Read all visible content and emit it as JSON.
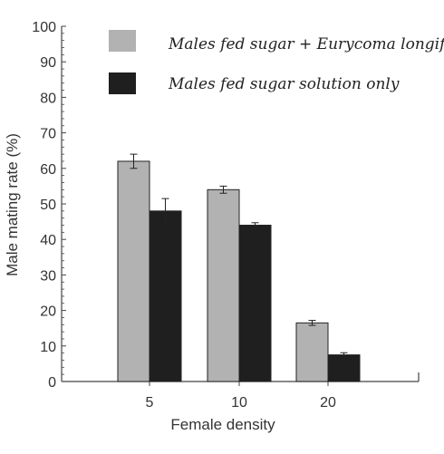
{
  "chart_data": {
    "type": "bar",
    "title": "",
    "xlabel": "Female density",
    "ylabel": "Male mating rate (%)",
    "ylim": [
      0,
      100
    ],
    "yticks": [
      0,
      10,
      20,
      30,
      40,
      50,
      60,
      70,
      80,
      90,
      100
    ],
    "categories": [
      "5",
      "10",
      "20"
    ],
    "grid": false,
    "legend_position": "top",
    "series": [
      {
        "name": "Males fed sugar + Eurycoma longifolia",
        "color": "#b2b2b2",
        "values": [
          62,
          54,
          16.5
        ],
        "errors": [
          2,
          1,
          0.7
        ]
      },
      {
        "name": "Males fed sugar solution only",
        "color": "#1f1f1f",
        "values": [
          48,
          44,
          7.5
        ],
        "errors": [
          3.5,
          0.7,
          0.6
        ]
      }
    ]
  }
}
